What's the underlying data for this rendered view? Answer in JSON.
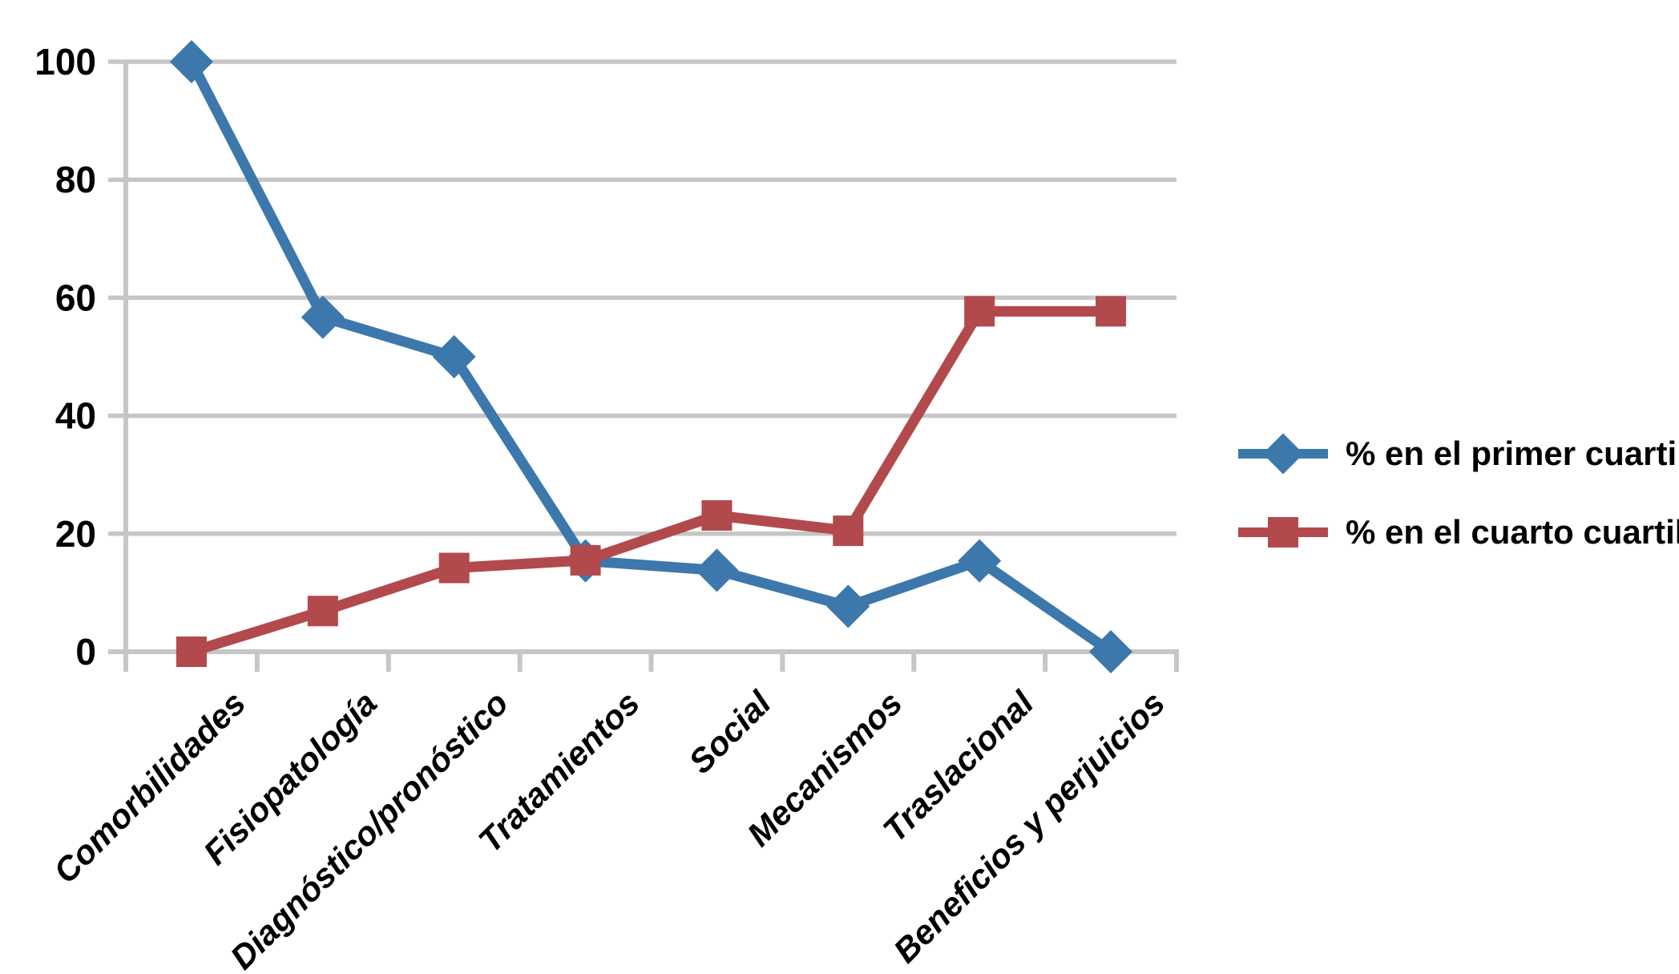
{
  "chart_data": {
    "type": "line",
    "categories": [
      "Comorbilidades",
      "Fisiopatología",
      "Diagnóstico/pronóstico",
      "Tratamientos",
      "Social",
      "Mecanismos",
      "Traslacional",
      "Beneficios y perjuicios"
    ],
    "series": [
      {
        "name": "% en el primer cuartil",
        "marker": "diamond",
        "color": "#3C78AC",
        "values": [
          100,
          56.7,
          50,
          15.4,
          13.8,
          7.7,
          15.4,
          0
        ]
      },
      {
        "name": "% en el cuarto cuartil",
        "marker": "square",
        "color": "#B2494D",
        "values": [
          0,
          6.9,
          14.2,
          15.5,
          23.1,
          20.5,
          57.7,
          57.7
        ]
      }
    ],
    "title": "",
    "xlabel": "",
    "ylabel": "",
    "ylim": [
      0,
      100
    ],
    "yticks": [
      0,
      20,
      40,
      60,
      80,
      100
    ],
    "grid": "horizontal-only",
    "legend_position": "right-middle"
  },
  "axes": {
    "y_tick_labels": [
      "0",
      "20",
      "40",
      "60",
      "80",
      "100"
    ]
  },
  "legend": {
    "items": [
      {
        "label": "% en el primer cuartil",
        "color": "#3C78AC",
        "marker": "diamond"
      },
      {
        "label": "% en el cuarto cuartil",
        "color": "#B2494D",
        "marker": "square"
      }
    ]
  },
  "colors": {
    "gridline": "#C6C6C6",
    "axis": "#BFBFBF",
    "text": "#000000"
  }
}
